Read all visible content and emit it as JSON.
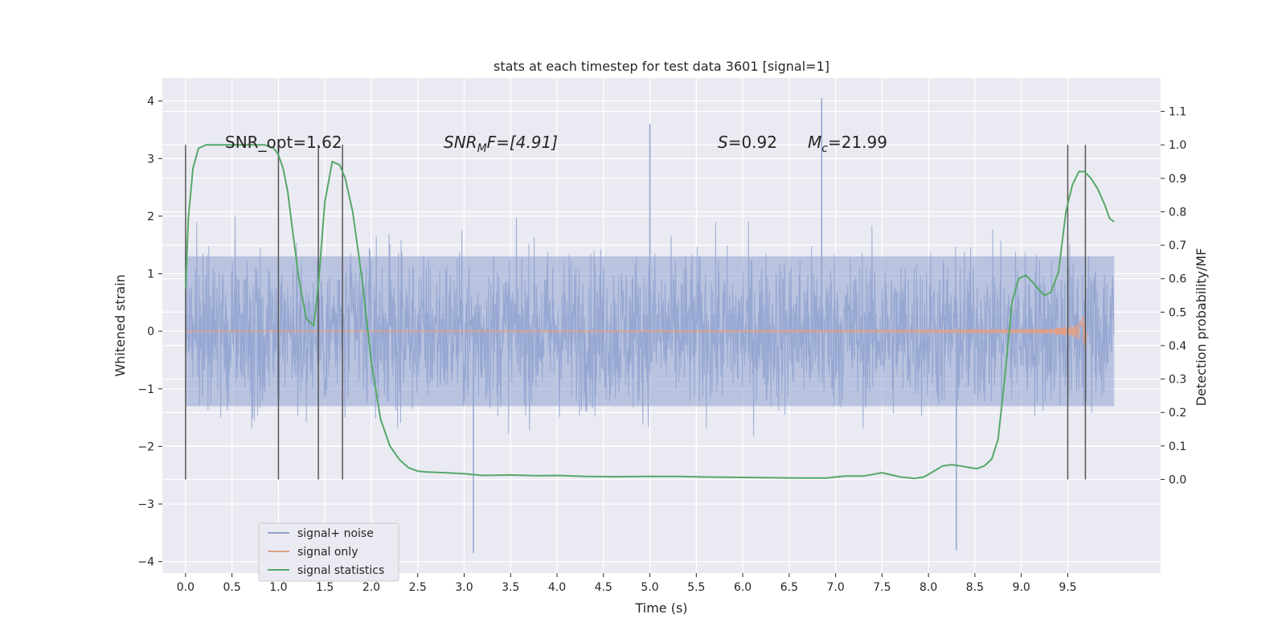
{
  "chart_data": {
    "type": "line",
    "title": "stats at each timestep for test data 3601 [signal=1]",
    "xlabel": "Time (s)",
    "ylabel": "Whitened strain",
    "y2label": "Detection probability/MF",
    "xlim": [
      -0.25,
      10.5
    ],
    "ylim": [
      -4.2,
      4.4
    ],
    "y2lim": [
      -0.28,
      1.2
    ],
    "x_ticks": [
      "0.0",
      "0.5",
      "1.0",
      "1.5",
      "2.0",
      "2.5",
      "3.0",
      "3.5",
      "4.0",
      "4.5",
      "5.0",
      "5.5",
      "6.0",
      "6.5",
      "7.0",
      "7.5",
      "8.0",
      "8.5",
      "9.0",
      "9.5"
    ],
    "y_ticks": [
      "4",
      "3",
      "2",
      "1",
      "0",
      "−1",
      "−2",
      "−3",
      "−4"
    ],
    "y2_ticks": [
      "1.1",
      "1.0",
      "0.9",
      "0.8",
      "0.7",
      "0.6",
      "0.5",
      "0.4",
      "0.3",
      "0.2",
      "0.1",
      "0.0"
    ],
    "grid": true,
    "legend_placement": "lower-left",
    "annotations": {
      "snr_opt": "SNR_opt=1.62",
      "snr_mf_main": "SNR",
      "snr_mf_sub": "M",
      "snr_mf_rest": "F=[4.91]",
      "s_main": "S",
      "s_rest": "=0.92",
      "mc_main": "M",
      "mc_sub": "c",
      "mc_rest": "=21.99"
    },
    "vlines": [
      0.0,
      1.0,
      1.43,
      1.69,
      9.5,
      9.69
    ],
    "series": [
      {
        "name": "signal+ noise",
        "color": "#8fa3cf",
        "style": "noise",
        "x_range": [
          0,
          10
        ],
        "band": 1.3,
        "peak_max": 4.05,
        "peak_min": -3.85
      },
      {
        "name": "signal only",
        "color": "#e0a088",
        "style": "chirp",
        "x_range": [
          0,
          9.72
        ],
        "peak_time": 9.69,
        "max_amplitude": 0.3
      },
      {
        "name": "signal statistics",
        "color": "#55a868",
        "axis": "right",
        "x": [
          0.0,
          0.03,
          0.08,
          0.14,
          0.22,
          0.35,
          0.5,
          0.7,
          0.85,
          0.95,
          1.0,
          1.05,
          1.1,
          1.15,
          1.22,
          1.3,
          1.38,
          1.43,
          1.5,
          1.58,
          1.66,
          1.72,
          1.8,
          1.9,
          2.0,
          2.1,
          2.2,
          2.3,
          2.4,
          2.5,
          2.6,
          2.8,
          3.0,
          3.2,
          3.5,
          3.8,
          4.0,
          4.3,
          4.6,
          5.0,
          5.3,
          5.6,
          6.0,
          6.3,
          6.6,
          6.9,
          7.1,
          7.3,
          7.5,
          7.7,
          7.85,
          7.95,
          8.05,
          8.15,
          8.25,
          8.35,
          8.45,
          8.52,
          8.6,
          8.68,
          8.75,
          8.82,
          8.9,
          8.97,
          9.05,
          9.12,
          9.18,
          9.25,
          9.32,
          9.4,
          9.48,
          9.55,
          9.62,
          9.68,
          9.75,
          9.82,
          9.9,
          9.95,
          10.0
        ],
        "values": [
          0.57,
          0.78,
          0.93,
          0.99,
          1.0,
          1.0,
          1.0,
          1.0,
          1.0,
          0.99,
          0.97,
          0.93,
          0.86,
          0.75,
          0.6,
          0.48,
          0.46,
          0.58,
          0.83,
          0.95,
          0.94,
          0.9,
          0.8,
          0.6,
          0.35,
          0.18,
          0.1,
          0.06,
          0.035,
          0.025,
          0.022,
          0.02,
          0.017,
          0.012,
          0.013,
          0.011,
          0.012,
          0.009,
          0.008,
          0.009,
          0.009,
          0.007,
          0.006,
          0.005,
          0.004,
          0.004,
          0.01,
          0.01,
          0.02,
          0.007,
          0.003,
          0.007,
          0.023,
          0.04,
          0.044,
          0.04,
          0.035,
          0.032,
          0.04,
          0.06,
          0.12,
          0.3,
          0.53,
          0.6,
          0.61,
          0.59,
          0.57,
          0.55,
          0.56,
          0.62,
          0.8,
          0.88,
          0.92,
          0.92,
          0.9,
          0.87,
          0.82,
          0.78,
          0.77
        ]
      }
    ]
  }
}
